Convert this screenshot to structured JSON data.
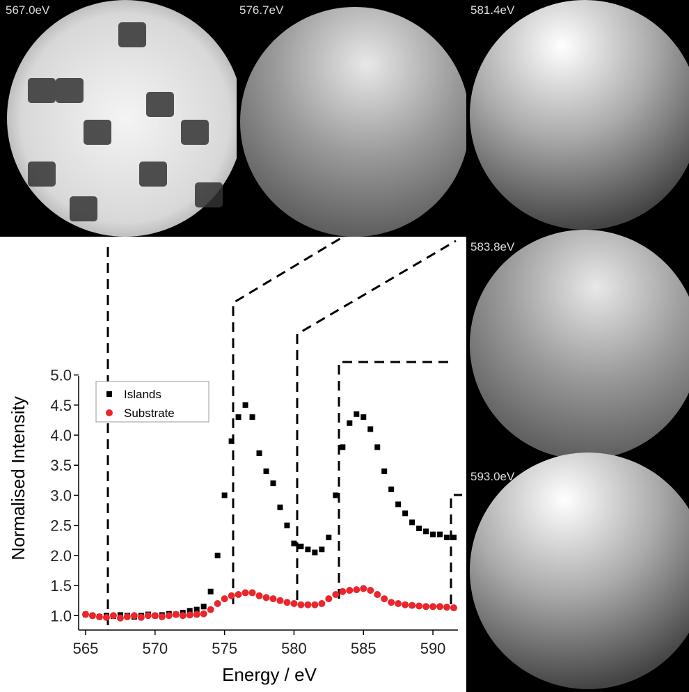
{
  "images": [
    {
      "label": "567.0eV"
    },
    {
      "label": "576.7eV"
    },
    {
      "label": "581.4eV"
    },
    {
      "label": "583.8eV"
    },
    {
      "label": "593.0eV"
    }
  ],
  "chart_data": {
    "type": "scatter",
    "xlabel": "Energy / eV",
    "ylabel": "Normalised Intensity",
    "x": [
      565,
      565.5,
      566,
      566.5,
      567,
      567.5,
      568,
      568.5,
      569,
      569.5,
      570,
      570.5,
      571,
      571.5,
      572,
      572.5,
      573,
      573.5,
      574,
      574.5,
      575,
      575.5,
      576,
      576.5,
      577,
      577.5,
      578,
      578.5,
      579,
      579.5,
      580,
      580.5,
      581,
      581.5,
      582,
      582.5,
      583,
      583.5,
      584,
      584.5,
      585,
      585.5,
      586,
      586.5,
      587,
      587.5,
      588,
      588.5,
      589,
      589.5,
      590,
      590.5,
      591,
      591.5
    ],
    "series": [
      {
        "name": "Islands",
        "color": "#000000",
        "marker": "square",
        "values": [
          1.02,
          1.0,
          0.98,
          1.0,
          0.99,
          1.01,
          1.0,
          0.98,
          1.0,
          1.02,
          1.0,
          1.01,
          1.03,
          1.02,
          1.05,
          1.08,
          1.1,
          1.15,
          1.4,
          2.0,
          3.0,
          3.9,
          4.3,
          4.5,
          4.3,
          3.7,
          3.4,
          3.2,
          2.8,
          2.5,
          2.2,
          2.15,
          2.1,
          2.05,
          2.1,
          2.3,
          3.0,
          3.8,
          4.2,
          4.35,
          4.3,
          4.1,
          3.8,
          3.4,
          3.1,
          2.85,
          2.7,
          2.55,
          2.45,
          2.4,
          2.35,
          2.35,
          2.3,
          2.3
        ]
      },
      {
        "name": "Substrate",
        "color": "#e8262b",
        "marker": "circle",
        "values": [
          1.02,
          1.0,
          0.98,
          0.97,
          1.0,
          0.96,
          0.98,
          1.0,
          0.97,
          1.0,
          1.0,
          0.98,
          1.0,
          1.02,
          1.0,
          1.01,
          1.02,
          1.03,
          1.1,
          1.2,
          1.28,
          1.33,
          1.35,
          1.38,
          1.38,
          1.33,
          1.3,
          1.28,
          1.25,
          1.22,
          1.2,
          1.18,
          1.18,
          1.18,
          1.2,
          1.28,
          1.35,
          1.4,
          1.42,
          1.43,
          1.45,
          1.42,
          1.35,
          1.28,
          1.22,
          1.2,
          1.18,
          1.17,
          1.16,
          1.15,
          1.15,
          1.15,
          1.14,
          1.13
        ]
      }
    ],
    "xlim": [
      564.5,
      591.8
    ],
    "ylim": [
      0.76,
      5.1
    ],
    "xticks": [
      565,
      570,
      575,
      580,
      585,
      590
    ],
    "yticks": [
      {
        "value": 1,
        "label": "1.0"
      },
      {
        "value": 1.5,
        "label": "1.5"
      },
      {
        "value": 2,
        "label": "2.0"
      },
      {
        "value": 2.5,
        "label": "2.5"
      },
      {
        "value": 3,
        "label": "3.0"
      },
      {
        "value": 3.5,
        "label": "3.5"
      },
      {
        "value": 4,
        "label": "4.0"
      },
      {
        "value": 4.5,
        "label": "4.5"
      },
      {
        "value": 5,
        "label": "5.0"
      }
    ]
  }
}
